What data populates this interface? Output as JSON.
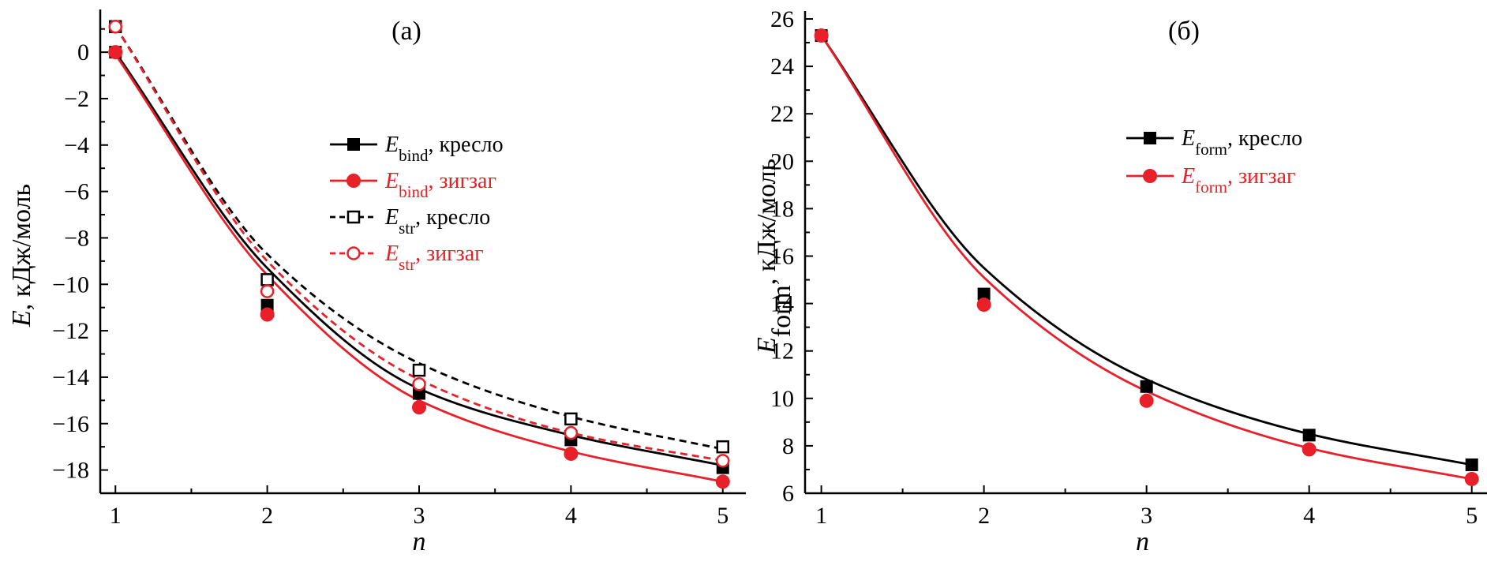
{
  "chart_data": [
    {
      "type": "line",
      "title": "(а)",
      "xlabel": "n",
      "ylabel_main": "E",
      "ylabel_rest": ", кДж/моль",
      "xlim": [
        0.9,
        5.1
      ],
      "ylim": [
        -19,
        1.5
      ],
      "x_ticks": [
        1,
        2,
        3,
        4,
        5
      ],
      "y_ticks": [
        0,
        -2,
        -4,
        -6,
        -8,
        -10,
        -12,
        -14,
        -16,
        -18
      ],
      "x_tick_labels": [
        "1",
        "2",
        "3",
        "4",
        "5"
      ],
      "y_tick_labels": [
        "0",
        "−2",
        "−4",
        "−6",
        "−8",
        "−10",
        "−12",
        "−14",
        "−16",
        "−18"
      ],
      "legend_position": "right",
      "series": [
        {
          "name_main": "E",
          "name_sub": "bind",
          "name_rest": ", кресло",
          "color": "#000000",
          "marker": "square-filled",
          "dash": false,
          "x": [
            1,
            2,
            3,
            4,
            5
          ],
          "points": [
            0.0,
            -10.9,
            -14.7,
            -16.7,
            -17.9
          ],
          "fit": [
            0.0,
            -9.3,
            -14.5,
            -16.5,
            -17.8
          ]
        },
        {
          "name_main": "E",
          "name_sub": "bind",
          "name_rest": ", зигзаг",
          "color": "#e8202a",
          "marker": "circle-filled",
          "dash": false,
          "x": [
            1,
            2,
            3,
            4,
            5
          ],
          "points": [
            0.0,
            -11.3,
            -15.3,
            -17.3,
            -18.5
          ],
          "fit": [
            -0.1,
            -9.6,
            -15.0,
            -17.2,
            -18.5
          ]
        },
        {
          "name_main": "E",
          "name_sub": "str",
          "name_rest": ", кресло",
          "color": "#000000",
          "marker": "square-open",
          "dash": true,
          "x": [
            1,
            2,
            3,
            4,
            5
          ],
          "points": [
            1.1,
            -9.8,
            -13.7,
            -15.8,
            -17.0
          ],
          "fit": [
            1.1,
            -8.7,
            -13.4,
            -15.7,
            -17.1
          ]
        },
        {
          "name_main": "E",
          "name_sub": "str",
          "name_rest": ", зигзаг",
          "color": "#e8202a",
          "marker": "circle-open",
          "dash": true,
          "x": [
            1,
            2,
            3,
            4,
            5
          ],
          "points": [
            1.1,
            -10.3,
            -14.3,
            -16.4,
            -17.6
          ],
          "fit": [
            1.1,
            -9.0,
            -14.1,
            -16.4,
            -17.6
          ]
        }
      ]
    },
    {
      "type": "line",
      "title": "(б)",
      "xlabel": "n",
      "ylabel_main": "E",
      "ylabel_sub": "form",
      "ylabel_rest": ", кДж/моль",
      "xlim": [
        0.9,
        5.05
      ],
      "ylim": [
        6,
        26
      ],
      "x_ticks": [
        1,
        2,
        3,
        4,
        5
      ],
      "y_ticks": [
        6,
        8,
        10,
        12,
        14,
        16,
        18,
        20,
        22,
        24,
        26
      ],
      "x_tick_labels": [
        "1",
        "2",
        "3",
        "4",
        "5"
      ],
      "y_tick_labels": [
        "6",
        "8",
        "10",
        "12",
        "14",
        "16",
        "18",
        "20",
        "22",
        "24",
        "26"
      ],
      "legend_position": "top-right",
      "series": [
        {
          "name_main": "E",
          "name_sub": "form",
          "name_rest": ", кресло",
          "color": "#000000",
          "marker": "square-filled",
          "dash": false,
          "x": [
            1,
            2,
            3,
            4,
            5
          ],
          "points": [
            25.3,
            14.4,
            10.5,
            8.45,
            7.2
          ],
          "fit": [
            25.3,
            15.5,
            10.8,
            8.5,
            7.2
          ]
        },
        {
          "name_main": "E",
          "name_sub": "form",
          "name_rest": ", зигзаг",
          "color": "#e8202a",
          "marker": "circle-filled",
          "dash": false,
          "x": [
            1,
            2,
            3,
            4,
            5
          ],
          "points": [
            25.3,
            13.95,
            9.9,
            7.85,
            6.6
          ],
          "fit": [
            25.3,
            15.1,
            10.3,
            7.9,
            6.6
          ]
        }
      ]
    }
  ]
}
